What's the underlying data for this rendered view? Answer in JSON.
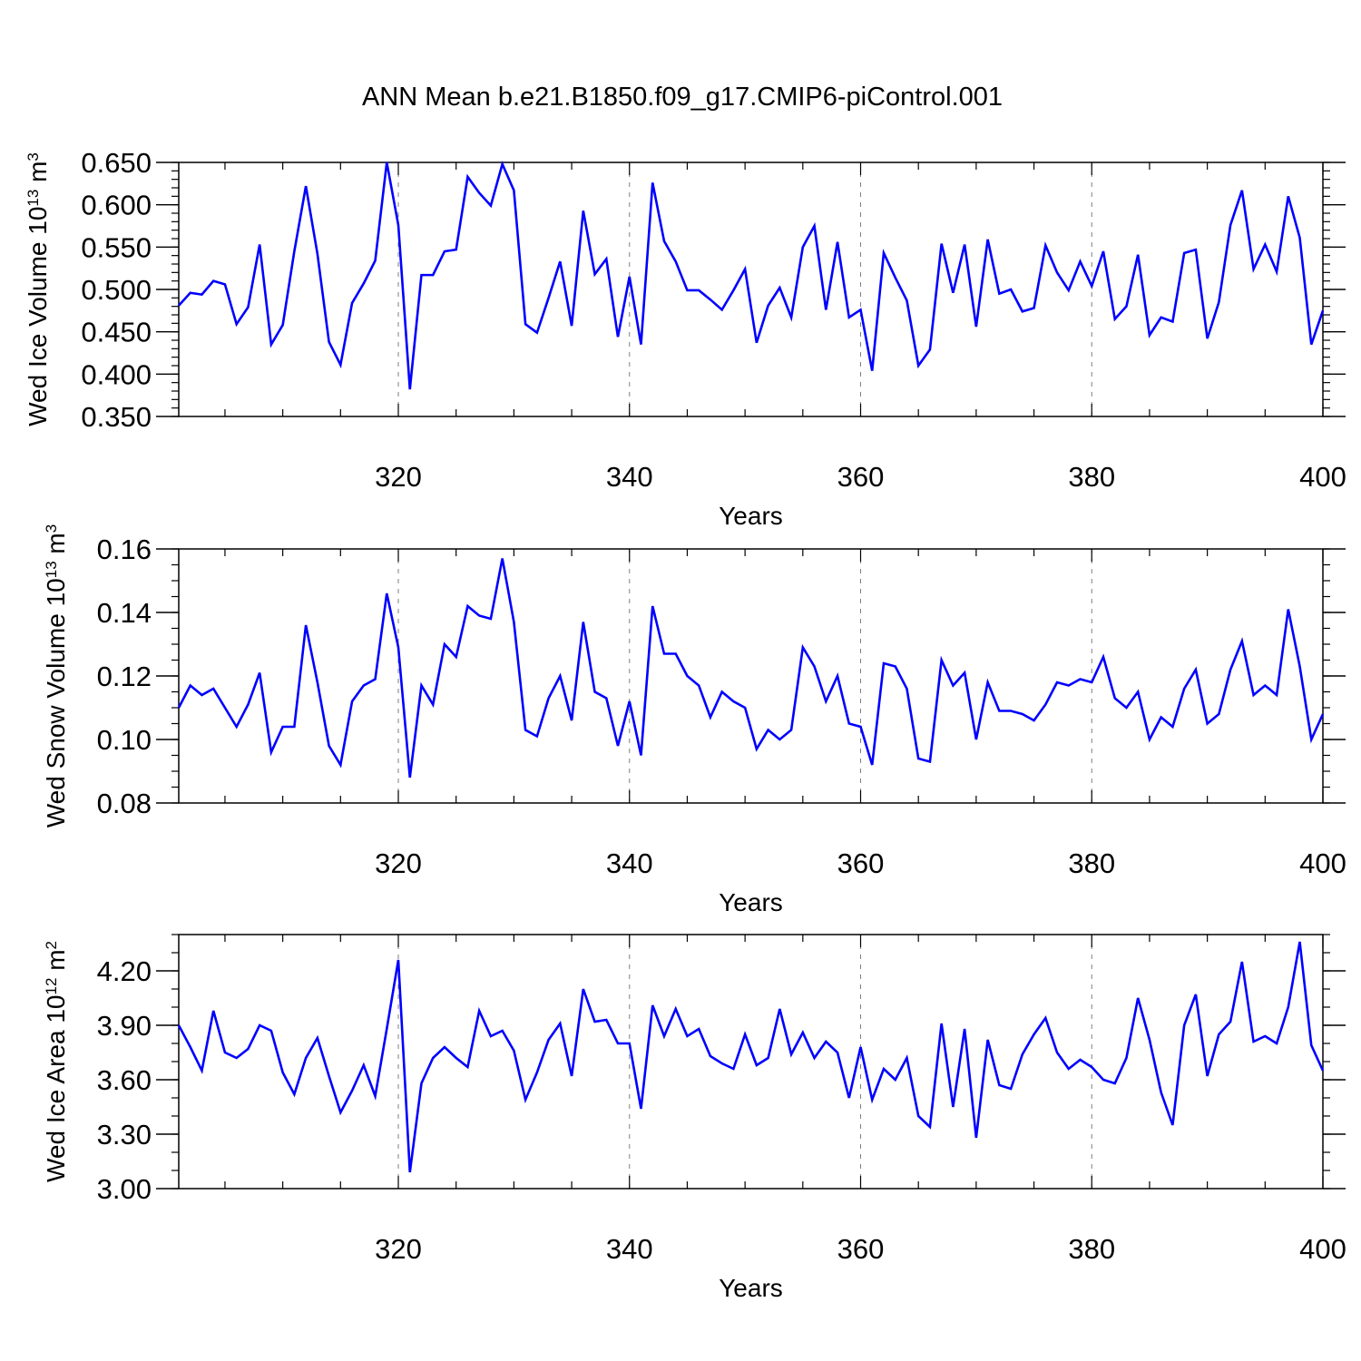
{
  "title": "ANN Mean b.e21.B1850.f09_g17.CMIP6-piControl.001",
  "colors": {
    "series": "#0000ff",
    "axis": "#000000",
    "grid": "#7f7f7f"
  },
  "chart_data": [
    {
      "type": "line",
      "ylabel": {
        "main": "Wed Ice Volume 10",
        "exp": "13",
        "mid": " m",
        "unit_exp": "3"
      },
      "xlabel": "Years",
      "xlim": [
        301,
        400
      ],
      "ylim": [
        0.35,
        0.65
      ],
      "xticks": [
        "320",
        "340",
        "360",
        "380",
        "400"
      ],
      "yticks": [
        "0.350",
        "0.400",
        "0.450",
        "0.500",
        "0.550",
        "0.600",
        "0.650"
      ],
      "grid": "vertical dashed at major x ticks",
      "x_start": 301,
      "series": [
        {
          "values": [
            0.481,
            0.496,
            0.494,
            0.51,
            0.506,
            0.459,
            0.479,
            0.553,
            0.435,
            0.458,
            0.545,
            0.622,
            0.542,
            0.438,
            0.411,
            0.484,
            0.507,
            0.534,
            0.65,
            0.576,
            0.382,
            0.517,
            0.517,
            0.545,
            0.547,
            0.633,
            0.614,
            0.599,
            0.648,
            0.617,
            0.459,
            0.449,
            0.49,
            0.533,
            0.457,
            0.593,
            0.518,
            0.536,
            0.444,
            0.515,
            0.435,
            0.626,
            0.557,
            0.533,
            0.499,
            0.499,
            0.488,
            0.476,
            0.499,
            0.524,
            0.437,
            0.481,
            0.502,
            0.467,
            0.55,
            0.575,
            0.476,
            0.556,
            0.467,
            0.476,
            0.404,
            0.543,
            0.514,
            0.487,
            0.41,
            0.429,
            0.554,
            0.496,
            0.553,
            0.456,
            0.559,
            0.495,
            0.5,
            0.474,
            0.478,
            0.552,
            0.52,
            0.499,
            0.533,
            0.504,
            0.545,
            0.465,
            0.48,
            0.541,
            0.446,
            0.467,
            0.462,
            0.543,
            0.547,
            0.442,
            0.485,
            0.576,
            0.617,
            0.524,
            0.553,
            0.521,
            0.61,
            0.561,
            0.435,
            0.475
          ]
        }
      ]
    },
    {
      "type": "line",
      "ylabel": {
        "main": "Wed Snow Volume 10",
        "exp": "13",
        "mid": " m",
        "unit_exp": "3"
      },
      "xlabel": "Years",
      "xlim": [
        301,
        400
      ],
      "ylim": [
        0.08,
        0.16
      ],
      "xticks": [
        "320",
        "340",
        "360",
        "380",
        "400"
      ],
      "yticks": [
        "0.08",
        "0.10",
        "0.12",
        "0.14",
        "0.16"
      ],
      "grid": "vertical dashed at major x ticks",
      "x_start": 301,
      "series": [
        {
          "values": [
            0.11,
            0.117,
            0.114,
            0.116,
            0.11,
            0.104,
            0.111,
            0.121,
            0.096,
            0.104,
            0.104,
            0.136,
            0.118,
            0.098,
            0.092,
            0.112,
            0.117,
            0.119,
            0.146,
            0.129,
            0.088,
            0.117,
            0.111,
            0.13,
            0.126,
            0.142,
            0.139,
            0.138,
            0.157,
            0.137,
            0.103,
            0.101,
            0.113,
            0.12,
            0.106,
            0.137,
            0.115,
            0.113,
            0.098,
            0.112,
            0.095,
            0.142,
            0.127,
            0.127,
            0.12,
            0.117,
            0.107,
            0.115,
            0.112,
            0.11,
            0.097,
            0.103,
            0.1,
            0.103,
            0.129,
            0.123,
            0.112,
            0.12,
            0.105,
            0.104,
            0.092,
            0.124,
            0.123,
            0.116,
            0.094,
            0.093,
            0.125,
            0.117,
            0.121,
            0.1,
            0.118,
            0.109,
            0.109,
            0.108,
            0.106,
            0.111,
            0.118,
            0.117,
            0.119,
            0.118,
            0.126,
            0.113,
            0.11,
            0.115,
            0.1,
            0.107,
            0.104,
            0.116,
            0.122,
            0.105,
            0.108,
            0.122,
            0.131,
            0.114,
            0.117,
            0.114,
            0.141,
            0.123,
            0.1,
            0.108
          ]
        }
      ]
    },
    {
      "type": "line",
      "ylabel": {
        "main": "Wed Ice Area 10",
        "exp": "12",
        "mid": " m",
        "unit_exp": "2"
      },
      "xlabel": "Years",
      "xlim": [
        301,
        400
      ],
      "ylim": [
        3.0,
        4.4
      ],
      "xticks": [
        "320",
        "340",
        "360",
        "380",
        "400"
      ],
      "yticks": [
        "3.00",
        "3.30",
        "3.60",
        "3.90",
        "4.20"
      ],
      "grid": "vertical dashed at major x ticks",
      "x_start": 301,
      "series": [
        {
          "values": [
            3.9,
            3.78,
            3.65,
            3.98,
            3.75,
            3.72,
            3.77,
            3.9,
            3.87,
            3.64,
            3.52,
            3.72,
            3.83,
            3.62,
            3.42,
            3.54,
            3.68,
            3.51,
            3.88,
            4.26,
            3.09,
            3.58,
            3.72,
            3.78,
            3.72,
            3.67,
            3.98,
            3.84,
            3.87,
            3.76,
            3.49,
            3.64,
            3.82,
            3.91,
            3.62,
            4.1,
            3.92,
            3.93,
            3.8,
            3.8,
            3.44,
            4.01,
            3.84,
            3.99,
            3.84,
            3.88,
            3.73,
            3.69,
            3.66,
            3.85,
            3.68,
            3.72,
            3.99,
            3.74,
            3.86,
            3.72,
            3.81,
            3.75,
            3.5,
            3.78,
            3.49,
            3.66,
            3.6,
            3.72,
            3.4,
            3.34,
            3.91,
            3.45,
            3.88,
            3.28,
            3.82,
            3.57,
            3.55,
            3.74,
            3.85,
            3.94,
            3.75,
            3.66,
            3.71,
            3.67,
            3.6,
            3.58,
            3.72,
            4.05,
            3.82,
            3.53,
            3.35,
            3.9,
            4.07,
            3.62,
            3.85,
            3.92,
            4.25,
            3.81,
            3.84,
            3.8,
            4.0,
            4.36,
            3.79,
            3.65
          ]
        }
      ]
    }
  ]
}
